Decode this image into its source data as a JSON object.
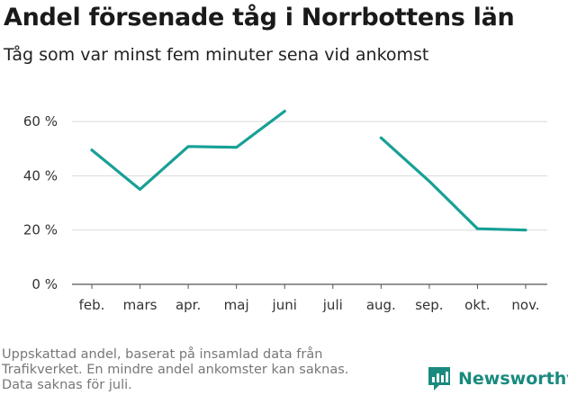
{
  "header": {
    "title": "Andel försenade tåg i Norrbottens län",
    "subtitle": "Tåg som var minst fem minuter sena vid ankomst"
  },
  "footnote": {
    "lines": [
      "Uppskattad andel, baserat på insamlad data från",
      "Trafikverket. En mindre andel ankomster kan saknas.",
      "Data saknas för juli."
    ]
  },
  "brand": {
    "name": "Newsworthy",
    "icon": "newsworthy-logo-icon",
    "color": "#1a8a7e"
  },
  "chart_data": {
    "type": "line",
    "categories": [
      "feb.",
      "mars",
      "apr.",
      "maj",
      "juni",
      "juli",
      "aug.",
      "sep.",
      "okt.",
      "nov."
    ],
    "series": [
      {
        "values": [
          49.5,
          35,
          50.8,
          50.5,
          63.8,
          null,
          54,
          38,
          20.5,
          20
        ],
        "color": "#17a096"
      }
    ],
    "ylim": [
      0,
      65
    ],
    "yticks": [
      0,
      20,
      40,
      60
    ],
    "ytick_labels": [
      "0 %",
      "20 %",
      "40 %",
      "60 %"
    ],
    "xlabel": "",
    "ylabel": "",
    "grid": true,
    "legend": "none"
  }
}
